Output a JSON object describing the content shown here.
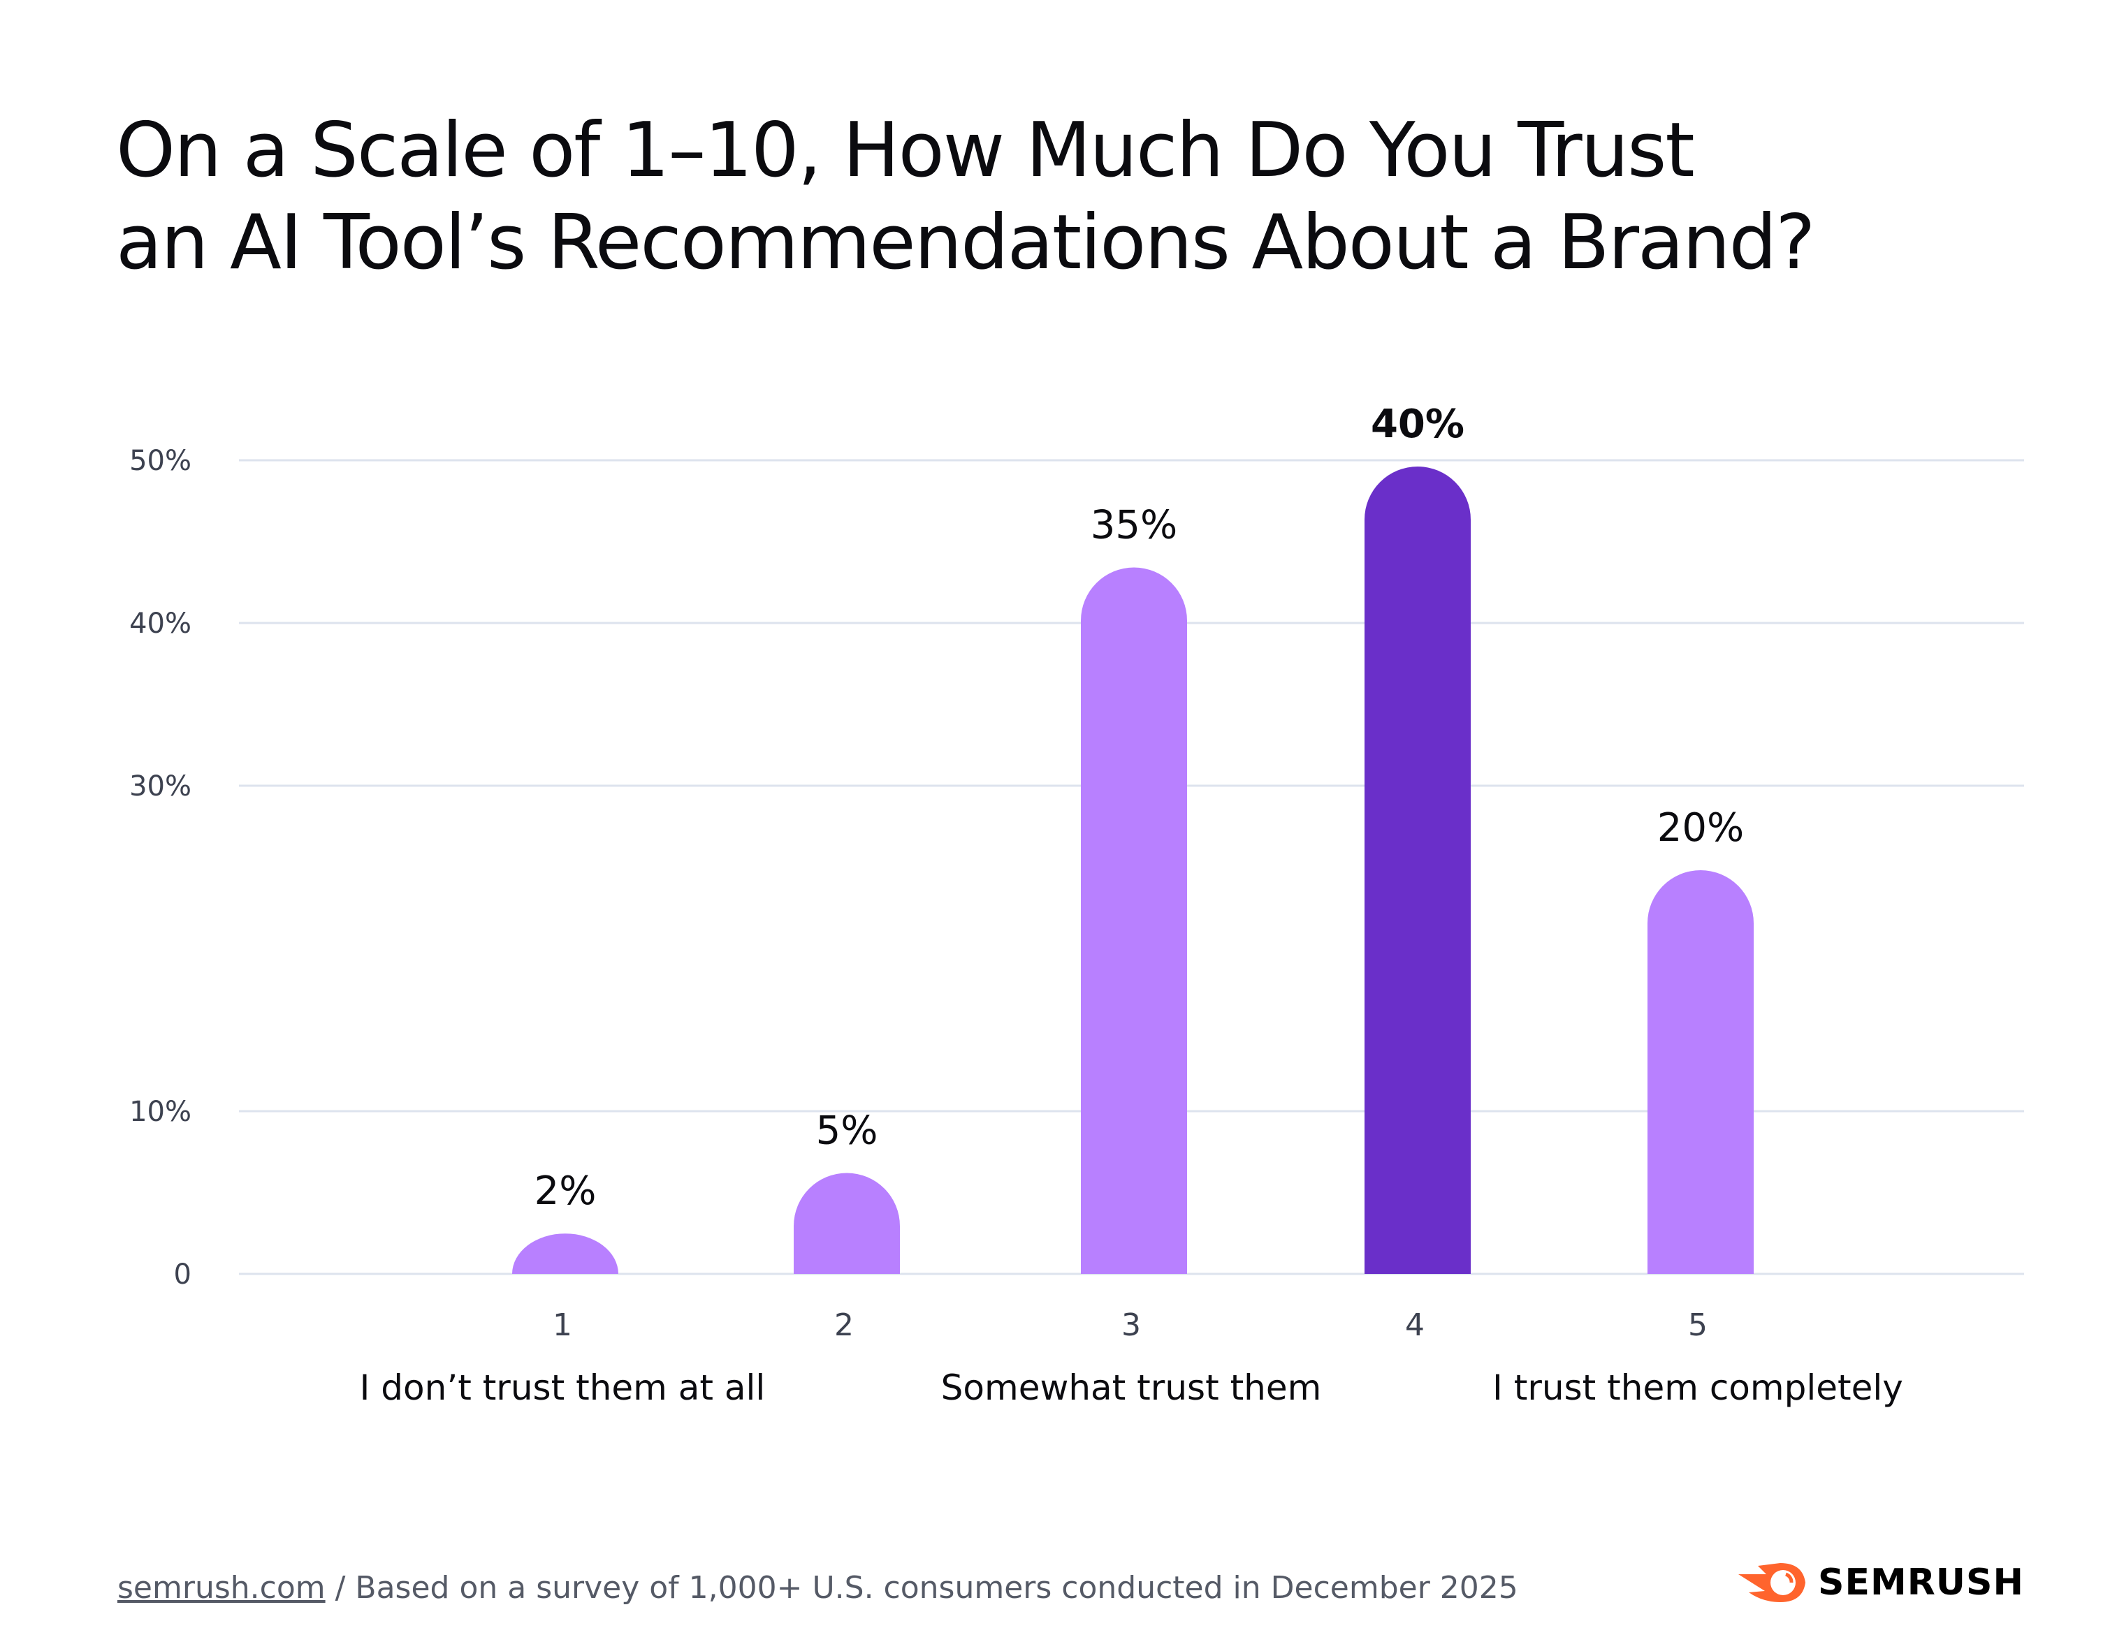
{
  "title_lines": [
    "On a Scale of 1–10, How Much Do You Trust",
    "an AI Tool’s Recommendations About a Brand?"
  ],
  "chart_data": {
    "type": "bar",
    "categories": [
      "1",
      "2",
      "3",
      "4",
      "5"
    ],
    "values": [
      2,
      5,
      35,
      40,
      20
    ],
    "value_labels": [
      "2%",
      "5%",
      "35%",
      "40%",
      "20%"
    ],
    "highlight_index": 3,
    "category_descriptions": [
      {
        "under": "1",
        "text": "I don’t trust them at all"
      },
      {
        "under": "3",
        "text": "Somewhat trust them"
      },
      {
        "under": "5",
        "text": "I trust them completely"
      }
    ],
    "y_ticks": [
      "0",
      "10%",
      "30%",
      "40%",
      "50%"
    ],
    "ylim": [
      0,
      50
    ],
    "grid": true,
    "colors": {
      "bar": "#B880FF",
      "highlight": "#6A2FC9",
      "grid": "#DDE3EE"
    }
  },
  "footer": {
    "link": "semrush.com",
    "note": " / Based on a survey of 1,000+ U.S. consumers conducted in December 2025"
  },
  "logo": {
    "text": "SEMRUSH",
    "color": "#FF642D"
  }
}
